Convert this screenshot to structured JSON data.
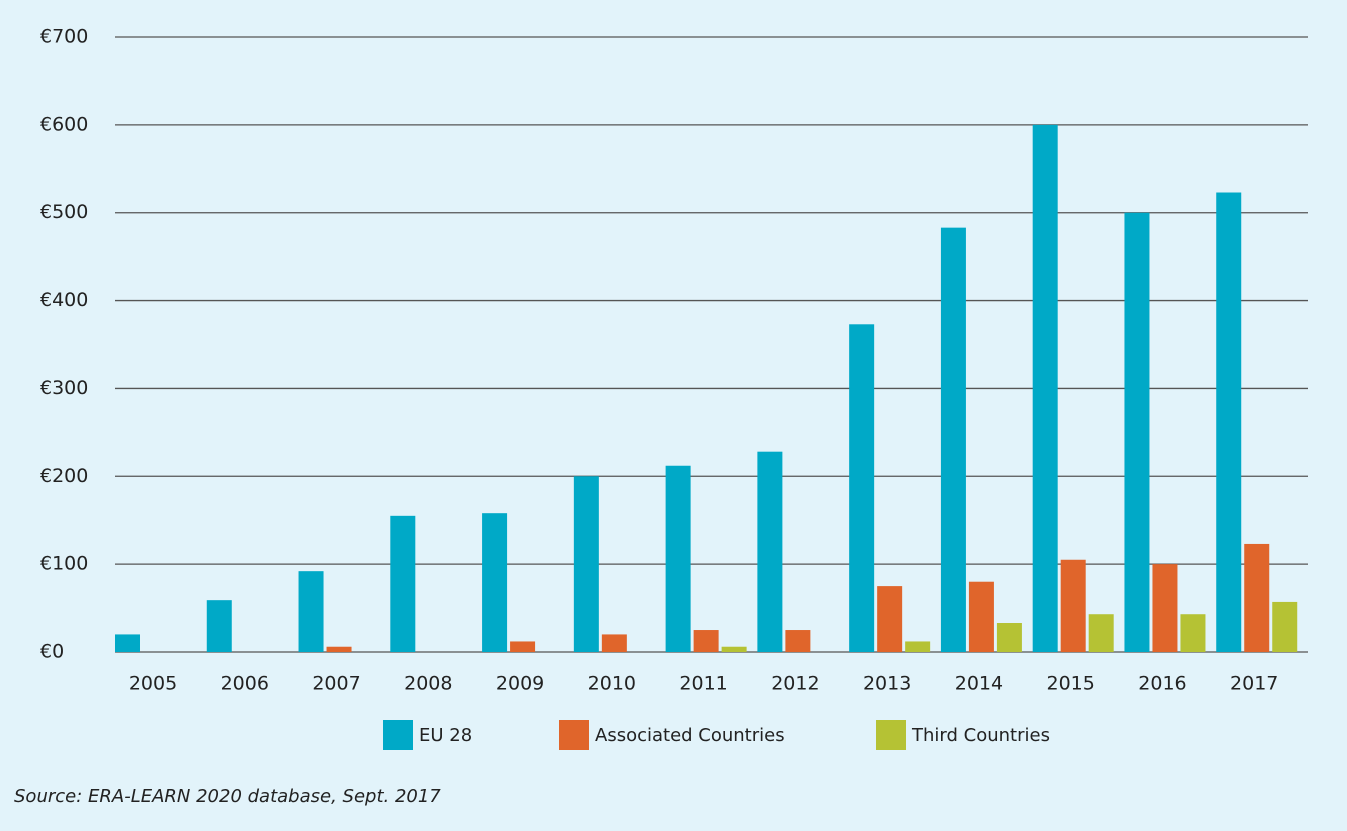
{
  "chart_data": {
    "type": "bar",
    "categories": [
      "2005",
      "2006",
      "2007",
      "2008",
      "2009",
      "2010",
      "2011",
      "2012",
      "2013",
      "2014",
      "2015",
      "2016",
      "2017"
    ],
    "series": [
      {
        "name": "EU 28",
        "color": "#00a9c7",
        "values": [
          20,
          59,
          92,
          155,
          158,
          200,
          212,
          228,
          373,
          483,
          600,
          500,
          523
        ]
      },
      {
        "name": "Associated Countries",
        "color": "#e0652b",
        "values": [
          0,
          0,
          6,
          0,
          12,
          20,
          25,
          25,
          75,
          80,
          105,
          100,
          123
        ]
      },
      {
        "name": "Third Countries",
        "color": "#b5c234",
        "values": [
          0,
          0,
          0,
          0,
          0,
          0,
          6,
          0,
          12,
          33,
          43,
          43,
          57
        ]
      }
    ],
    "ylim": [
      0,
      700
    ],
    "yticks": [
      {
        "value": 0,
        "label": "€0"
      },
      {
        "value": 100,
        "label": "€100"
      },
      {
        "value": 200,
        "label": "€200"
      },
      {
        "value": 300,
        "label": "€300"
      },
      {
        "value": 400,
        "label": "€400"
      },
      {
        "value": 500,
        "label": "€500"
      },
      {
        "value": 600,
        "label": "€600"
      },
      {
        "value": 700,
        "label": "€700"
      }
    ],
    "grid": true,
    "legend": "bottom",
    "source": "Source: ERA-LEARN 2020 database, Sept. 2017"
  }
}
